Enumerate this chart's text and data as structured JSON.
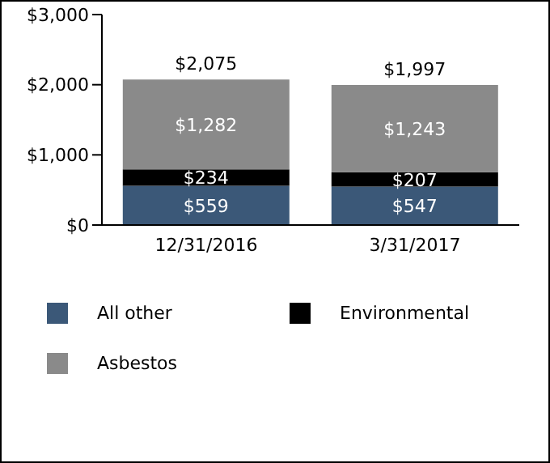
{
  "chart_data": {
    "type": "bar",
    "stacked": true,
    "categories": [
      "12/31/2016",
      "3/31/2017"
    ],
    "series": [
      {
        "name": "All other",
        "color": "#3b5878",
        "values": [
          559,
          547
        ],
        "value_labels": [
          "$559",
          "$547"
        ]
      },
      {
        "name": "Environmental",
        "color": "#000000",
        "values": [
          234,
          207
        ],
        "value_labels": [
          "$234",
          "$207"
        ]
      },
      {
        "name": "Asbestos",
        "color": "#8a8a8a",
        "values": [
          1282,
          1243
        ],
        "value_labels": [
          "$1,282",
          "$1,243"
        ]
      }
    ],
    "totals": [
      "$2,075",
      "$1,997"
    ],
    "ylim": [
      0,
      3000
    ],
    "yticks": [
      {
        "value": 0,
        "label": "$0"
      },
      {
        "value": 1000,
        "label": "$1,000"
      },
      {
        "value": 2000,
        "label": "$2,000"
      },
      {
        "value": 3000,
        "label": "$3,000"
      }
    ],
    "grid": false,
    "legend": "bottom"
  }
}
